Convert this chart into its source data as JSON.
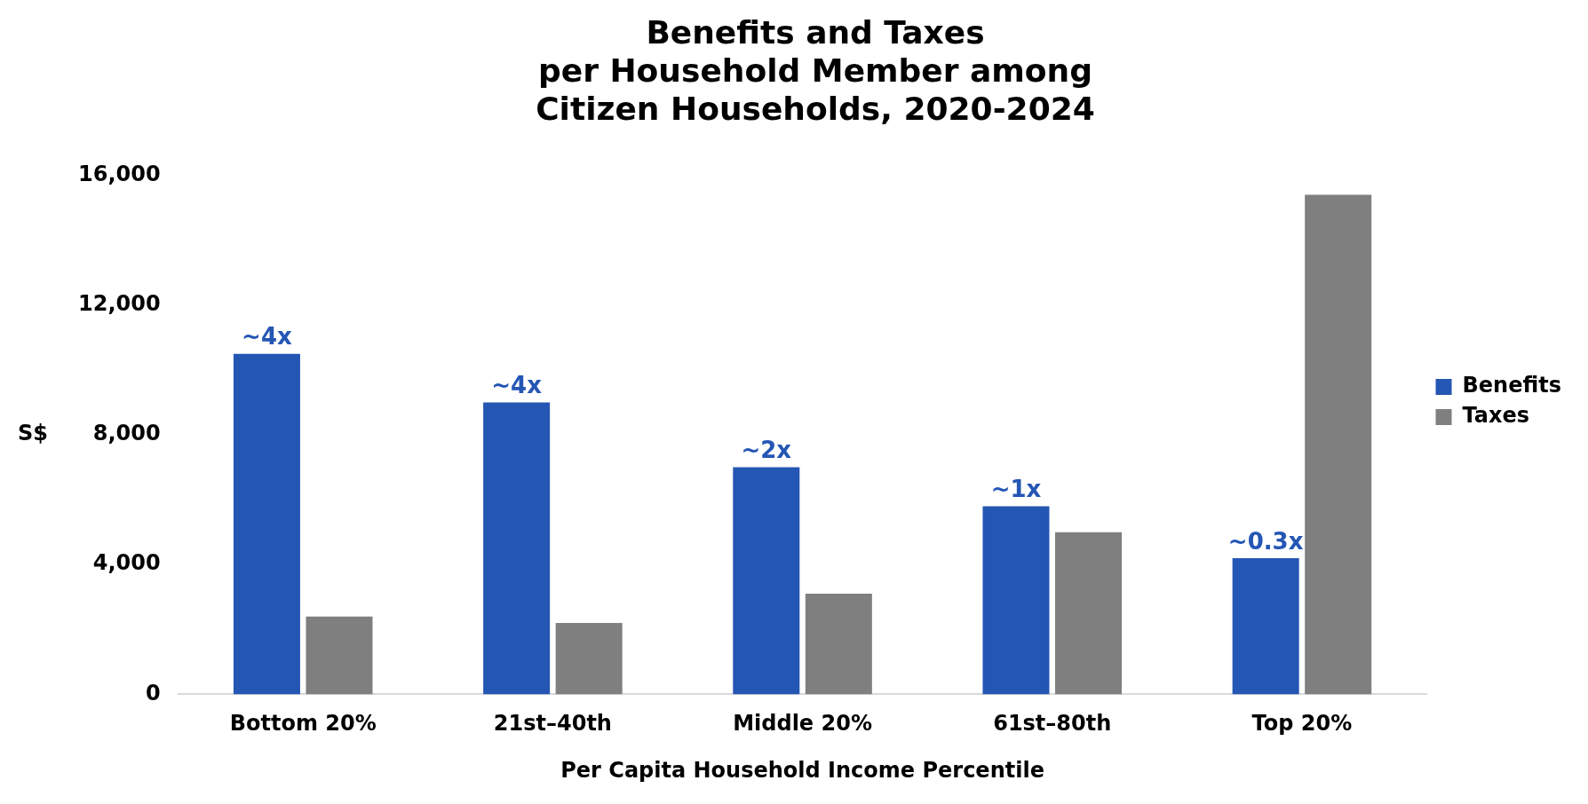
{
  "chart_data": {
    "type": "bar",
    "title": "Benefits and Taxes\nper Household Member among\nCitizen Households, 2020-2024",
    "xlabel": "Per Capita Household Income Percentile",
    "ylabel": "S$",
    "categories": [
      "Bottom 20%",
      "21st–40th",
      "Middle 20%",
      "61st–80th",
      "Top 20%"
    ],
    "series": [
      {
        "name": "Benefits",
        "color": "#2456b4",
        "values": [
          10500,
          9000,
          7000,
          5800,
          4200
        ]
      },
      {
        "name": "Taxes",
        "color": "#7f7f7f",
        "values": [
          2400,
          2200,
          3100,
          5000,
          15400
        ]
      }
    ],
    "annotations": [
      {
        "text": "~4x",
        "x": "Bottom 20%",
        "y": 10500
      },
      {
        "text": "~4x",
        "x": "21st–40th",
        "y": 9000
      },
      {
        "text": "~2x",
        "x": "Middle 20%",
        "y": 7000
      },
      {
        "text": "~1x",
        "x": "61st–80th",
        "y": 5800
      },
      {
        "text": "~0.3x",
        "x": "Top 20%",
        "y": 4200
      }
    ],
    "ylim": [
      0,
      16000
    ],
    "yticks": [
      0,
      {
        "value": 4000,
        "label": "4,000"
      },
      {
        "value": 8000,
        "label": "8,000"
      },
      {
        "value": 12000,
        "label": "12,000"
      },
      {
        "value": 16000,
        "label": "16,000"
      }
    ],
    "grid": false,
    "legend": "right"
  }
}
